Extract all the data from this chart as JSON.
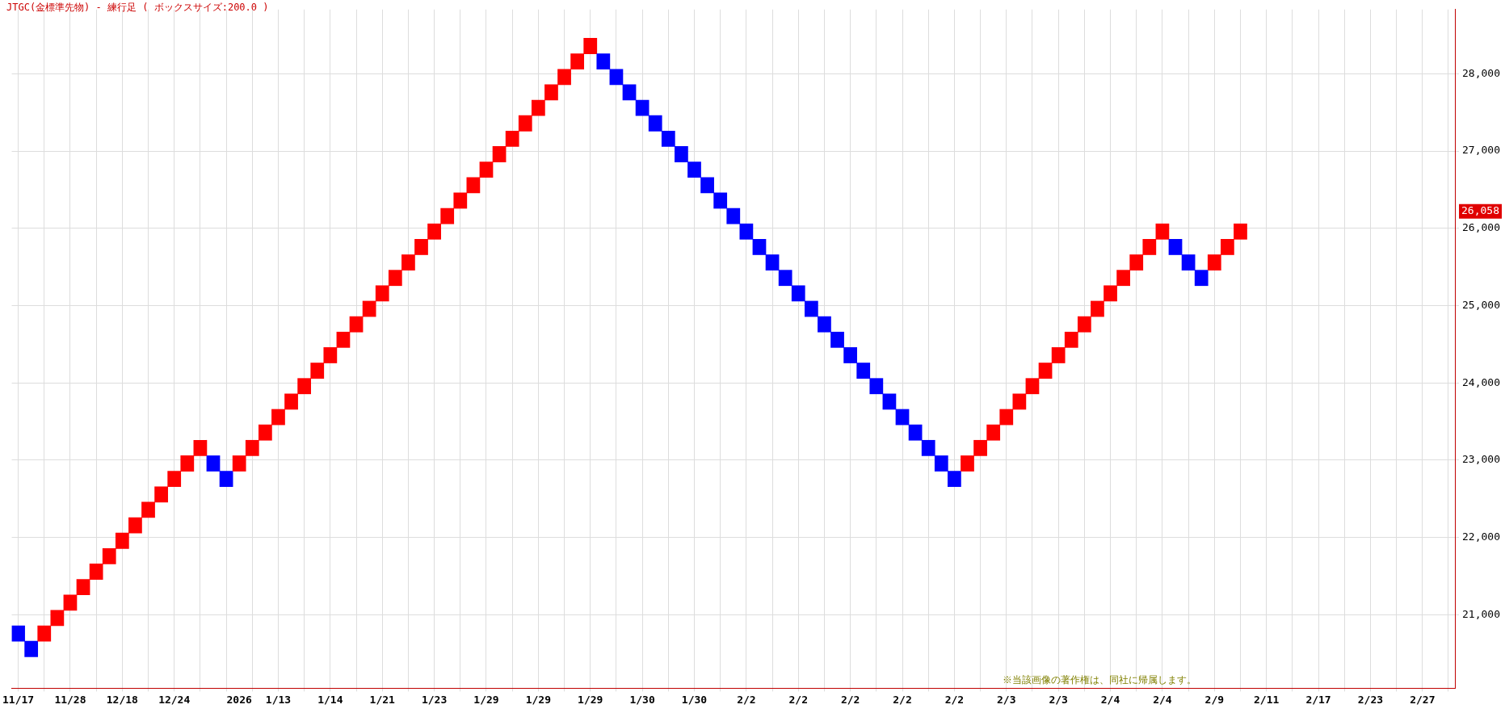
{
  "chart_data": {
    "type": "bar",
    "title": "JTGC(金標準先物) - 練行足 ( ボックスサイズ:200.0 )",
    "annotations": [
      "※当該画像の著作権は、同社に帰属します。",
      "26,058"
    ],
    "categories": [
      "11/17",
      null,
      null,
      null,
      "11/28",
      null,
      null,
      null,
      "12/18",
      null,
      null,
      null,
      "12/24",
      null,
      null,
      null,
      null,
      "2026",
      null,
      null,
      "1/13",
      null,
      null,
      null,
      "1/14",
      null,
      null,
      null,
      "1/21",
      null,
      null,
      null,
      "1/23",
      null,
      null,
      null,
      "1/29",
      null,
      null,
      null,
      "1/29",
      null,
      null,
      null,
      "1/29",
      null,
      null,
      null,
      "1/30",
      null,
      null,
      null,
      "1/30",
      null,
      null,
      null,
      "2/2",
      null,
      null,
      null,
      "2/2",
      null,
      null,
      null,
      "2/2",
      null,
      null,
      null,
      "2/2",
      null,
      null,
      null,
      "2/2",
      null,
      null,
      null,
      "2/3",
      null,
      null,
      null,
      "2/3",
      null,
      null,
      null,
      "2/4",
      null,
      null,
      null,
      "2/4",
      null,
      null,
      null,
      "2/9",
      null,
      null,
      null,
      "2/11",
      null,
      null,
      null,
      "2/17",
      null,
      null,
      null,
      "2/23",
      null,
      null,
      null,
      "2/27",
      null,
      null
    ],
    "base": [
      20658,
      20458,
      20658,
      20858,
      21058,
      21258,
      21458,
      21658,
      21858,
      22058,
      22258,
      22458,
      22658,
      22858,
      23058,
      22858,
      22658,
      22858,
      23058,
      23258,
      23458,
      23658,
      23858,
      24058,
      24258,
      24458,
      24658,
      24858,
      25058,
      25258,
      25458,
      25658,
      25858,
      26058,
      26258,
      26458,
      26658,
      26858,
      27058,
      27258,
      27458,
      27658,
      27858,
      28058,
      28258,
      28058,
      27858,
      27658,
      27458,
      27258,
      27058,
      26858,
      26658,
      26458,
      26258,
      26058,
      25858,
      25658,
      25458,
      25258,
      25058,
      24858,
      24658,
      24458,
      24258,
      24058,
      23858,
      23658,
      23458,
      23258,
      23058,
      22858,
      22658,
      22858,
      23058,
      23258,
      23458,
      23658,
      23858,
      24058,
      24258,
      24458,
      24658,
      24858,
      25058,
      25258,
      25458,
      25658,
      25858,
      25658,
      25458,
      25258,
      25458,
      25658,
      25858,
      null,
      null,
      null,
      null,
      null,
      null,
      null,
      null,
      null,
      null,
      null,
      null,
      null,
      null,
      null,
      null
    ],
    "values": [
      200,
      200,
      200,
      200,
      200,
      200,
      200,
      200,
      200,
      200,
      200,
      200,
      200,
      200,
      200,
      200,
      200,
      200,
      200,
      200,
      200,
      200,
      200,
      200,
      200,
      200,
      200,
      200,
      200,
      200,
      200,
      200,
      200,
      200,
      200,
      200,
      200,
      200,
      200,
      200,
      200,
      200,
      200,
      200,
      200,
      200,
      200,
      200,
      200,
      200,
      200,
      200,
      200,
      200,
      200,
      200,
      200,
      200,
      200,
      200,
      200,
      200,
      200,
      200,
      200,
      200,
      200,
      200,
      200,
      200,
      200,
      200,
      200,
      200,
      200,
      200,
      200,
      200,
      200,
      200,
      200,
      200,
      200,
      200,
      200,
      200,
      200,
      200,
      200,
      200,
      200,
      200,
      200,
      200,
      200,
      null,
      null,
      null,
      null,
      null,
      null,
      null,
      null,
      null,
      null,
      null,
      null,
      null,
      null,
      null,
      null
    ],
    "colors": [
      "#0000ff",
      "#0000ff",
      "#ff0000",
      "#ff0000",
      "#ff0000",
      "#ff0000",
      "#ff0000",
      "#ff0000",
      "#ff0000",
      "#ff0000",
      "#ff0000",
      "#ff0000",
      "#ff0000",
      "#ff0000",
      "#ff0000",
      "#0000ff",
      "#0000ff",
      "#ff0000",
      "#ff0000",
      "#ff0000",
      "#ff0000",
      "#ff0000",
      "#ff0000",
      "#ff0000",
      "#ff0000",
      "#ff0000",
      "#ff0000",
      "#ff0000",
      "#ff0000",
      "#ff0000",
      "#ff0000",
      "#ff0000",
      "#ff0000",
      "#ff0000",
      "#ff0000",
      "#ff0000",
      "#ff0000",
      "#ff0000",
      "#ff0000",
      "#ff0000",
      "#ff0000",
      "#ff0000",
      "#ff0000",
      "#ff0000",
      "#ff0000",
      "#0000ff",
      "#0000ff",
      "#0000ff",
      "#0000ff",
      "#0000ff",
      "#0000ff",
      "#0000ff",
      "#0000ff",
      "#0000ff",
      "#0000ff",
      "#0000ff",
      "#0000ff",
      "#0000ff",
      "#0000ff",
      "#0000ff",
      "#0000ff",
      "#0000ff",
      "#0000ff",
      "#0000ff",
      "#0000ff",
      "#0000ff",
      "#0000ff",
      "#0000ff",
      "#0000ff",
      "#0000ff",
      "#0000ff",
      "#0000ff",
      "#0000ff",
      "#ff0000",
      "#ff0000",
      "#ff0000",
      "#ff0000",
      "#ff0000",
      "#ff0000",
      "#ff0000",
      "#ff0000",
      "#ff0000",
      "#ff0000",
      "#ff0000",
      "#ff0000",
      "#ff0000",
      "#ff0000",
      "#ff0000",
      "#ff0000",
      "#0000ff",
      "#0000ff",
      "#0000ff",
      "#ff0000",
      "#ff0000",
      "#ff0000",
      null,
      null,
      null,
      null,
      null,
      null,
      null,
      null,
      null,
      null,
      null,
      null,
      null,
      null,
      null,
      null
    ],
    "ylim": [
      20050,
      28830
    ],
    "yticks": [
      {
        "value": 21000,
        "label": "21,000"
      },
      {
        "value": 22000,
        "label": "22,000"
      },
      {
        "value": 23000,
        "label": "23,000"
      },
      {
        "value": 24000,
        "label": "24,000"
      },
      {
        "value": 25000,
        "label": "25,000"
      },
      {
        "value": 26000,
        "label": "26,000"
      },
      {
        "value": 27000,
        "label": "27,000"
      },
      {
        "value": 28000,
        "label": "28,000"
      }
    ],
    "grid": true
  }
}
